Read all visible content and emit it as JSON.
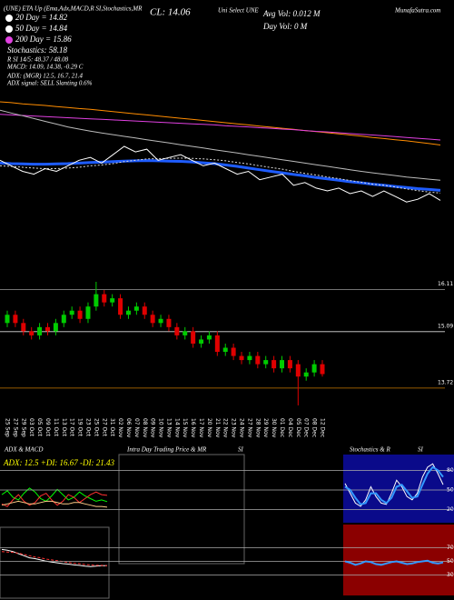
{
  "header": {
    "symbol_line": "(UNE) ETA Up (Ema,Adx,MACD,R SI,Stochastics,MR",
    "close": "CL: 14.06",
    "name": "Uni Select UNE",
    "avg_vol": "Avg Vol: 0.012 M",
    "day_vol": "Day Vol: 0  M",
    "site": "MunafaSutra.com"
  },
  "legend": [
    "20 Day = 14.82",
    "50 Day = 14.84",
    "200 Day = 15.86"
  ],
  "indicators": [
    "Stochastics: 58.18",
    "R SI 14/5: 48.37 / 48.08",
    "MACD: 14.09, 14.38, -0.29 C",
    "ADX: (MGR) 12.5, 16.7, 21.4",
    "ADX  signal: SELL Slanting 0.6%"
  ],
  "panels": {
    "adx": "ADX  & MACD",
    "intraday": "Intra  Day Trading Price  & MR",
    "intraday_si": "SI",
    "stoch": "Stochastics & R",
    "stoch_si": "SI"
  },
  "chart_data": [
    {
      "type": "line",
      "ylim": [
        12.7,
        19.3
      ],
      "series": [
        {
          "color": "#ff8c00",
          "values": [
            17.6,
            17.57,
            17.53,
            17.5,
            17.47,
            17.43,
            17.4,
            17.36,
            17.33,
            17.29,
            17.25,
            17.21,
            17.17,
            17.13,
            17.09,
            17.05,
            17.01,
            16.97,
            16.93,
            16.89,
            16.85,
            16.81,
            16.77,
            16.73,
            16.69,
            16.65,
            16.61,
            16.57,
            16.53,
            16.49,
            16.45,
            16.41,
            16.37,
            16.32,
            16.28,
            16.24,
            16.2,
            16.15,
            16.1,
            16.05
          ]
        },
        {
          "color": "#e040e0",
          "values": [
            17.15,
            17.13,
            17.11,
            17.09,
            17.07,
            17.05,
            17.03,
            17.01,
            16.99,
            16.97,
            16.95,
            16.93,
            16.91,
            16.89,
            16.87,
            16.85,
            16.83,
            16.81,
            16.79,
            16.77,
            16.74,
            16.72,
            16.7,
            16.67,
            16.65,
            16.62,
            16.6,
            16.57,
            16.54,
            16.52,
            16.49,
            16.46,
            16.43,
            16.41,
            16.38,
            16.35,
            16.32,
            16.29,
            16.26,
            16.23
          ]
        },
        {
          "color": "#bbbbbb",
          "values": [
            17.3,
            17.2,
            17.1,
            17.0,
            16.9,
            16.8,
            16.7,
            16.62,
            16.55,
            16.48,
            16.42,
            16.36,
            16.3,
            16.24,
            16.18,
            16.12,
            16.06,
            16.0,
            15.94,
            15.88,
            15.82,
            15.76,
            15.7,
            15.64,
            15.58,
            15.52,
            15.46,
            15.4,
            15.34,
            15.28,
            15.22,
            15.16,
            15.1,
            15.05,
            15.0,
            14.95,
            14.9,
            14.86,
            14.82,
            14.78
          ]
        },
        {
          "color": "#1e5cff",
          "width": 3,
          "values": [
            15.4,
            15.38,
            15.37,
            15.36,
            15.36,
            15.37,
            15.38,
            15.4,
            15.42,
            15.43,
            15.45,
            15.47,
            15.48,
            15.49,
            15.48,
            15.47,
            15.46,
            15.44,
            15.41,
            15.38,
            15.33,
            15.28,
            15.22,
            15.16,
            15.1,
            15.05,
            14.99,
            14.94,
            14.88,
            14.83,
            14.78,
            14.73,
            14.69,
            14.64,
            14.6,
            14.56,
            14.52,
            14.48,
            14.45,
            14.42
          ]
        },
        {
          "color": "#dddddd",
          "dash": "2 2",
          "values": [
            15.3,
            15.28,
            15.25,
            15.22,
            15.2,
            15.2,
            15.22,
            15.25,
            15.3,
            15.33,
            15.38,
            15.45,
            15.5,
            15.55,
            15.56,
            15.57,
            15.58,
            15.57,
            15.55,
            15.52,
            15.48,
            15.42,
            15.37,
            15.3,
            15.24,
            15.18,
            15.1,
            15.03,
            14.97,
            14.9,
            14.84,
            14.77,
            14.71,
            14.64,
            14.6,
            14.54,
            14.47,
            14.41,
            14.36,
            14.32
          ]
        },
        {
          "color": "#ffffff",
          "values": [
            15.5,
            15.3,
            15.1,
            15.0,
            15.2,
            15.1,
            15.3,
            15.5,
            15.6,
            15.4,
            15.7,
            16.0,
            15.8,
            15.9,
            15.5,
            15.6,
            15.7,
            15.5,
            15.3,
            15.4,
            15.2,
            15.0,
            15.1,
            14.8,
            14.9,
            15.0,
            14.6,
            14.7,
            14.5,
            14.4,
            14.5,
            14.3,
            14.4,
            14.2,
            14.4,
            14.2,
            14.0,
            14.1,
            14.3,
            14.06
          ]
        }
      ]
    },
    {
      "type": "candlestick",
      "ylim": [
        13.1,
        16.3
      ],
      "yticks": [
        16.11,
        15.09,
        13.72
      ],
      "tick_colors": [
        "#999999",
        "#dddddd",
        "#c87800"
      ],
      "up_color": "#00cc00",
      "down_color": "#e00000",
      "categories": [
        "25 Sep",
        "27 Sep",
        "29 Sep",
        "03 Oct",
        "05 Oct",
        "09 Oct",
        "11 Oct",
        "13 Oct",
        "17 Oct",
        "19 Oct",
        "23 Oct",
        "25 Oct",
        "27 Oct",
        "31 Oct",
        "02 Nov",
        "06 Nov",
        "07 Nov",
        "08 Nov",
        "09 Nov",
        "10 Nov",
        "13 Nov",
        "14 Nov",
        "15 Nov",
        "16 Nov",
        "17 Nov",
        "20 Nov",
        "21 Nov",
        "22 Nov",
        "23 Nov",
        "24 Nov",
        "27 Nov",
        "28 Nov",
        "29 Nov",
        "30 Nov",
        "01 Dec",
        "04 Dec",
        "05 Dec",
        "07 Dec",
        "08 Dec",
        "12 Dec"
      ],
      "open": [
        15.3,
        15.5,
        15.3,
        15.1,
        15.0,
        15.2,
        15.1,
        15.3,
        15.5,
        15.6,
        15.4,
        15.7,
        16.0,
        15.8,
        15.9,
        15.5,
        15.6,
        15.7,
        15.5,
        15.3,
        15.4,
        15.2,
        15.0,
        15.1,
        14.8,
        14.9,
        15.0,
        14.6,
        14.7,
        14.5,
        14.4,
        14.5,
        14.3,
        14.4,
        14.2,
        14.4,
        14.3,
        14.0,
        14.1,
        14.3
      ],
      "high": [
        15.6,
        15.6,
        15.4,
        15.2,
        15.3,
        15.3,
        15.4,
        15.6,
        15.7,
        15.7,
        15.8,
        16.3,
        16.1,
        16.0,
        16.0,
        15.7,
        15.8,
        15.8,
        15.6,
        15.5,
        15.5,
        15.3,
        15.2,
        15.2,
        15.0,
        15.1,
        15.1,
        14.8,
        14.8,
        14.6,
        14.6,
        14.6,
        14.5,
        14.5,
        14.5,
        14.5,
        14.4,
        14.2,
        14.4,
        14.4
      ],
      "low": [
        15.2,
        15.2,
        15.0,
        14.9,
        14.9,
        15.0,
        15.0,
        15.2,
        15.4,
        15.3,
        15.3,
        15.6,
        15.7,
        15.7,
        15.4,
        15.4,
        15.5,
        15.4,
        15.2,
        15.2,
        15.1,
        14.9,
        14.9,
        14.7,
        14.7,
        14.8,
        14.5,
        14.5,
        14.4,
        14.3,
        14.3,
        14.2,
        14.2,
        14.1,
        14.1,
        14.1,
        13.3,
        13.9,
        14.0,
        14.0
      ],
      "close": [
        15.5,
        15.3,
        15.1,
        15.0,
        15.2,
        15.1,
        15.3,
        15.5,
        15.6,
        15.4,
        15.7,
        16.0,
        15.8,
        15.9,
        15.5,
        15.6,
        15.7,
        15.5,
        15.3,
        15.4,
        15.2,
        15.0,
        15.1,
        14.8,
        14.9,
        15.0,
        14.6,
        14.7,
        14.5,
        14.4,
        14.5,
        14.3,
        14.4,
        14.2,
        14.4,
        14.2,
        14.0,
        14.1,
        14.3,
        14.06
      ]
    },
    {
      "type": "line",
      "title": "ADX: 12.5  +DI: 16.67  -DI: 21.43",
      "ylim": [
        0,
        40
      ],
      "series": [
        {
          "color": "#00ff00",
          "values": [
            22,
            25,
            20,
            18,
            23,
            27,
            24,
            19,
            17,
            21,
            26,
            22,
            18,
            20,
            24,
            21,
            19,
            17,
            18,
            16.67
          ]
        },
        {
          "color": "#ff3030",
          "values": [
            15,
            13,
            18,
            22,
            17,
            14,
            16,
            21,
            23,
            18,
            14,
            17,
            22,
            20,
            16,
            19,
            22,
            24,
            22,
            21.43
          ]
        },
        {
          "color": "#ffcc88",
          "values": [
            14,
            15,
            16,
            17,
            16,
            15,
            15,
            16,
            17,
            17,
            16,
            15,
            15,
            16,
            16,
            15,
            14,
            13,
            13,
            12.5
          ]
        }
      ]
    },
    {
      "type": "line",
      "ylim": [
        -1,
        0.5
      ],
      "series": [
        {
          "color": "#ffffff",
          "values": [
            0.1,
            0.08,
            0.05,
            0.0,
            -0.05,
            -0.1,
            -0.12,
            -0.15,
            -0.18,
            -0.2,
            -0.22,
            -0.24,
            -0.25,
            -0.27,
            -0.28,
            -0.3,
            -0.31,
            -0.3,
            -0.29,
            -0.29
          ]
        },
        {
          "color": "#ff3030",
          "dash": "3 2",
          "values": [
            0.05,
            0.04,
            0.03,
            0.01,
            -0.02,
            -0.05,
            -0.08,
            -0.1,
            -0.13,
            -0.15,
            -0.17,
            -0.19,
            -0.21,
            -0.23,
            -0.24,
            -0.26,
            -0.27,
            -0.28,
            -0.28,
            -0.29
          ]
        }
      ]
    },
    {
      "type": "line",
      "background": "#0a0a8a",
      "ylim": [
        0,
        100
      ],
      "yticks": [
        80,
        50,
        20
      ],
      "series": [
        {
          "color": "#ffffff",
          "values": [
            60,
            45,
            30,
            25,
            35,
            55,
            40,
            30,
            28,
            45,
            65,
            55,
            40,
            35,
            45,
            70,
            85,
            90,
            75,
            58.18
          ]
        },
        {
          "color": "#3399ff",
          "width": 2,
          "values": [
            55,
            50,
            38,
            28,
            30,
            45,
            45,
            35,
            30,
            38,
            55,
            58,
            48,
            38,
            40,
            58,
            75,
            85,
            80,
            70
          ]
        }
      ]
    },
    {
      "type": "line",
      "background": "#8b0000",
      "ylim": [
        0,
        100
      ],
      "yticks": [
        70,
        50,
        30
      ],
      "series": [
        {
          "color": "#3399ff",
          "width": 2,
          "values": [
            50,
            48,
            45,
            47,
            50,
            49,
            46,
            45,
            47,
            49,
            50,
            48,
            46,
            47,
            49,
            50,
            51,
            48,
            47,
            48.37
          ]
        }
      ]
    }
  ]
}
